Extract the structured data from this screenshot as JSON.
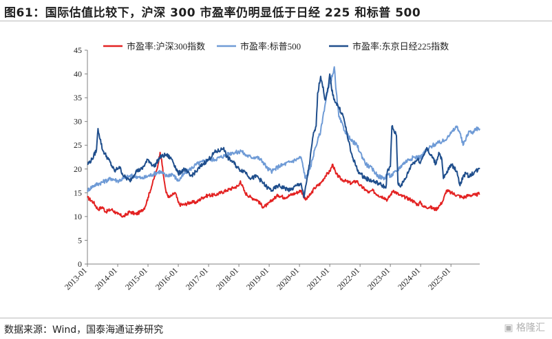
{
  "page": {
    "title": "图61：国际估值比较下，沪深 300 市盈率仍明显低于日经 225 和标普 500",
    "source": "数据来源：Wind，国泰海通证券研究",
    "watermark": "格隆汇"
  },
  "chart_data": {
    "type": "line",
    "title": "图61：国际估值比较下，沪深 300 市盈率仍明显低于日经 225 和标普 500",
    "xlabel": "",
    "ylabel": "",
    "ylim": [
      0,
      45
    ],
    "yticks": [
      0,
      5,
      10,
      15,
      20,
      25,
      30,
      35,
      40,
      45
    ],
    "xlim": [
      2013.0,
      2025.95
    ],
    "xtick_labels": [
      "2013-01",
      "2014-01",
      "2015-01",
      "2016-01",
      "2017-01",
      "2018-01",
      "2019-01",
      "2020-01",
      "2021-01",
      "2022-01",
      "2023-01",
      "2024-01",
      "2025-01"
    ],
    "xtick_values": [
      2013,
      2014,
      2015,
      2016,
      2017,
      2018,
      2019,
      2020,
      2021,
      2022,
      2023,
      2024,
      2025
    ],
    "grid": false,
    "legend_position": "top",
    "series": [
      {
        "name": "市盈率:沪深300指数",
        "color": "#e32222",
        "x": [
          2013.0,
          2013.2,
          2013.35,
          2013.5,
          2013.6,
          2013.8,
          2014.0,
          2014.2,
          2014.4,
          2014.6,
          2014.75,
          2014.9,
          2015.0,
          2015.15,
          2015.3,
          2015.4,
          2015.45,
          2015.5,
          2015.55,
          2015.6,
          2015.7,
          2015.8,
          2015.9,
          2016.0,
          2016.05,
          2016.2,
          2016.4,
          2016.6,
          2016.8,
          2017.0,
          2017.2,
          2017.4,
          2017.6,
          2017.8,
          2018.0,
          2018.05,
          2018.2,
          2018.4,
          2018.6,
          2018.8,
          2018.95,
          2019.1,
          2019.3,
          2019.5,
          2019.7,
          2019.9,
          2020.05,
          2020.2,
          2020.35,
          2020.5,
          2020.7,
          2020.85,
          2021.0,
          2021.1,
          2021.2,
          2021.35,
          2021.5,
          2021.7,
          2021.9,
          2022.0,
          2022.2,
          2022.3,
          2022.4,
          2022.6,
          2022.8,
          2022.9,
          2023.0,
          2023.1,
          2023.3,
          2023.5,
          2023.7,
          2023.9,
          2024.0,
          2024.1,
          2024.3,
          2024.5,
          2024.65,
          2024.75,
          2024.85,
          2025.0,
          2025.2,
          2025.4,
          2025.6,
          2025.8,
          2025.95
        ],
        "values": [
          14.0,
          13.0,
          11.5,
          12.0,
          11.0,
          11.5,
          10.5,
          10.0,
          11.0,
          10.5,
          11.0,
          12.0,
          14.0,
          17.0,
          20.0,
          23.5,
          22.0,
          19.0,
          17.0,
          15.0,
          14.0,
          14.5,
          15.0,
          13.0,
          12.5,
          12.5,
          13.0,
          13.0,
          14.0,
          14.5,
          14.5,
          15.0,
          15.5,
          16.0,
          16.5,
          17.5,
          15.0,
          14.0,
          13.5,
          12.0,
          12.5,
          13.5,
          14.5,
          14.0,
          14.5,
          15.0,
          15.5,
          13.5,
          14.5,
          16.0,
          17.0,
          18.5,
          19.5,
          21.0,
          19.0,
          18.0,
          17.5,
          17.0,
          17.5,
          16.5,
          15.5,
          15.0,
          15.5,
          14.5,
          14.0,
          13.5,
          14.5,
          15.5,
          14.5,
          14.0,
          13.5,
          12.5,
          13.0,
          12.0,
          12.0,
          11.5,
          12.5,
          13.5,
          15.5,
          15.0,
          14.5,
          14.0,
          14.5,
          14.5,
          14.8
        ]
      },
      {
        "name": "市盈率:标普500",
        "color": "#6f9bd6",
        "x": [
          2013.0,
          2013.2,
          2013.4,
          2013.6,
          2013.8,
          2014.0,
          2014.2,
          2014.4,
          2014.6,
          2014.8,
          2015.0,
          2015.2,
          2015.4,
          2015.6,
          2015.8,
          2016.0,
          2016.2,
          2016.4,
          2016.6,
          2016.8,
          2017.0,
          2017.2,
          2017.4,
          2017.6,
          2017.8,
          2018.0,
          2018.05,
          2018.2,
          2018.4,
          2018.6,
          2018.8,
          2018.95,
          2019.1,
          2019.3,
          2019.5,
          2019.7,
          2019.9,
          2020.05,
          2020.2,
          2020.35,
          2020.5,
          2020.6,
          2020.7,
          2020.8,
          2020.9,
          2021.0,
          2021.1,
          2021.15,
          2021.2,
          2021.3,
          2021.5,
          2021.7,
          2021.9,
          2022.0,
          2022.2,
          2022.4,
          2022.6,
          2022.8,
          2022.9,
          2023.0,
          2023.2,
          2023.4,
          2023.6,
          2023.8,
          2024.0,
          2024.2,
          2024.4,
          2024.6,
          2024.8,
          2024.9,
          2025.0,
          2025.2,
          2025.3,
          2025.4,
          2025.5,
          2025.6,
          2025.7,
          2025.8,
          2025.95
        ],
        "values": [
          15.5,
          16.5,
          17.0,
          17.5,
          18.0,
          17.5,
          18.0,
          18.5,
          18.5,
          18.0,
          18.5,
          19.0,
          19.5,
          18.5,
          19.0,
          17.5,
          19.0,
          20.0,
          21.0,
          21.5,
          22.0,
          22.0,
          22.5,
          23.0,
          23.5,
          23.5,
          24.0,
          23.0,
          22.5,
          22.5,
          21.5,
          20.0,
          19.5,
          20.5,
          21.0,
          21.5,
          22.0,
          22.5,
          18.0,
          20.0,
          24.0,
          26.0,
          28.0,
          32.0,
          35.5,
          38.0,
          40.0,
          41.5,
          37.0,
          31.0,
          28.0,
          26.0,
          25.0,
          23.5,
          21.0,
          20.0,
          18.5,
          18.0,
          19.0,
          18.5,
          19.5,
          21.0,
          22.0,
          22.5,
          22.5,
          24.0,
          25.0,
          25.5,
          26.0,
          27.0,
          27.5,
          29.0,
          27.5,
          25.0,
          26.5,
          28.0,
          27.5,
          28.5,
          28.5
        ]
      },
      {
        "name": "市盈率:东京日经225指数",
        "color": "#1f4e8c",
        "x": [
          2013.0,
          2013.15,
          2013.3,
          2013.35,
          2013.5,
          2013.7,
          2013.9,
          2014.05,
          2014.2,
          2014.4,
          2014.6,
          2014.8,
          2015.0,
          2015.2,
          2015.4,
          2015.6,
          2015.8,
          2016.0,
          2016.2,
          2016.4,
          2016.6,
          2016.8,
          2017.0,
          2017.2,
          2017.4,
          2017.5,
          2017.6,
          2017.8,
          2018.0,
          2018.2,
          2018.4,
          2018.6,
          2018.8,
          2018.95,
          2019.1,
          2019.3,
          2019.5,
          2019.7,
          2019.9,
          2020.05,
          2020.15,
          2020.25,
          2020.35,
          2020.45,
          2020.55,
          2020.6,
          2020.7,
          2020.75,
          2020.85,
          2020.95,
          2021.0,
          2021.05,
          2021.1,
          2021.2,
          2021.3,
          2021.45,
          2021.55,
          2021.7,
          2021.9,
          2022.0,
          2022.2,
          2022.4,
          2022.6,
          2022.75,
          2022.85,
          2022.9,
          2023.0,
          2023.05,
          2023.2,
          2023.25,
          2023.35,
          2023.5,
          2023.7,
          2023.9,
          2024.0,
          2024.1,
          2024.2,
          2024.3,
          2024.4,
          2024.5,
          2024.6,
          2024.7,
          2024.75,
          2024.85,
          2025.0,
          2025.2,
          2025.3,
          2025.4,
          2025.5,
          2025.6,
          2025.8,
          2025.95
        ],
        "values": [
          21.0,
          22.0,
          24.0,
          28.5,
          24.0,
          22.0,
          19.5,
          20.5,
          18.5,
          17.5,
          19.5,
          20.0,
          22.0,
          20.5,
          22.5,
          23.0,
          22.0,
          19.0,
          20.0,
          18.5,
          19.5,
          21.0,
          22.0,
          23.5,
          24.0,
          24.5,
          22.5,
          21.5,
          20.0,
          19.5,
          18.0,
          18.5,
          17.0,
          16.0,
          15.5,
          16.5,
          16.0,
          15.5,
          16.5,
          17.0,
          14.0,
          18.0,
          22.0,
          27.0,
          29.0,
          36.0,
          39.5,
          38.0,
          34.5,
          37.0,
          40.0,
          37.5,
          35.5,
          34.0,
          33.0,
          31.0,
          28.0,
          23.5,
          20.0,
          19.0,
          18.0,
          17.5,
          17.0,
          16.5,
          16.0,
          19.5,
          20.5,
          29.0,
          27.0,
          17.0,
          16.5,
          18.0,
          21.0,
          22.0,
          21.5,
          23.0,
          24.5,
          23.0,
          22.5,
          21.0,
          23.5,
          22.0,
          18.0,
          19.0,
          21.0,
          19.5,
          16.5,
          18.5,
          19.0,
          18.5,
          19.5,
          20.0
        ]
      }
    ]
  }
}
